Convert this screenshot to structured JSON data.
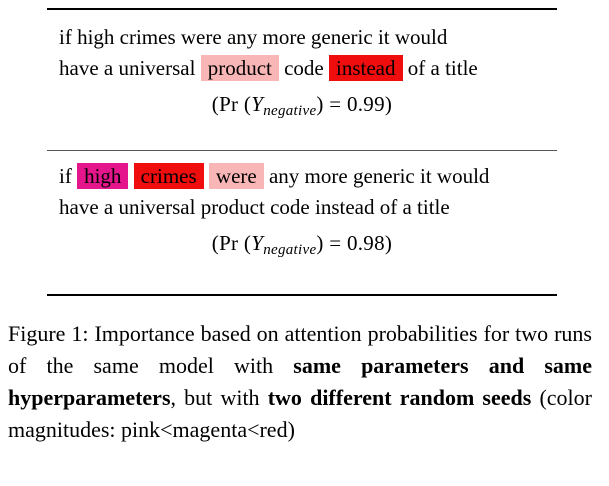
{
  "example1": {
    "line1": [
      "if high crimes were any more generic it would"
    ],
    "line2": {
      "t1": "have a universal",
      "product": "product",
      "t2": "code",
      "instead": "instead",
      "t3": "of a title"
    },
    "prob": {
      "pr": "Pr",
      "y": "Y",
      "sub": "negative",
      "eq": "= 0.99"
    }
  },
  "example2": {
    "line1": {
      "if": "if",
      "high": "high",
      "crimes": "crimes",
      "were": "were",
      "rest": "any more generic it would"
    },
    "line2": "have a universal product code instead of a title",
    "prob": {
      "pr": "Pr",
      "y": "Y",
      "sub": "negative",
      "eq": "= 0.98"
    }
  },
  "caption": {
    "label": "Figure 1:",
    "text1": "Importance based on attention probabilities for two runs of the same model with",
    "bold1": "same parameters and same hyperparameters",
    "text2": ", but with",
    "bold2": "two different random seeds",
    "text3": "(color magnitudes: pink<magenta<red)"
  },
  "colors": {
    "pink": "#f8b6b6",
    "magenta": "#e5158c",
    "red": "#ef0d0d"
  }
}
